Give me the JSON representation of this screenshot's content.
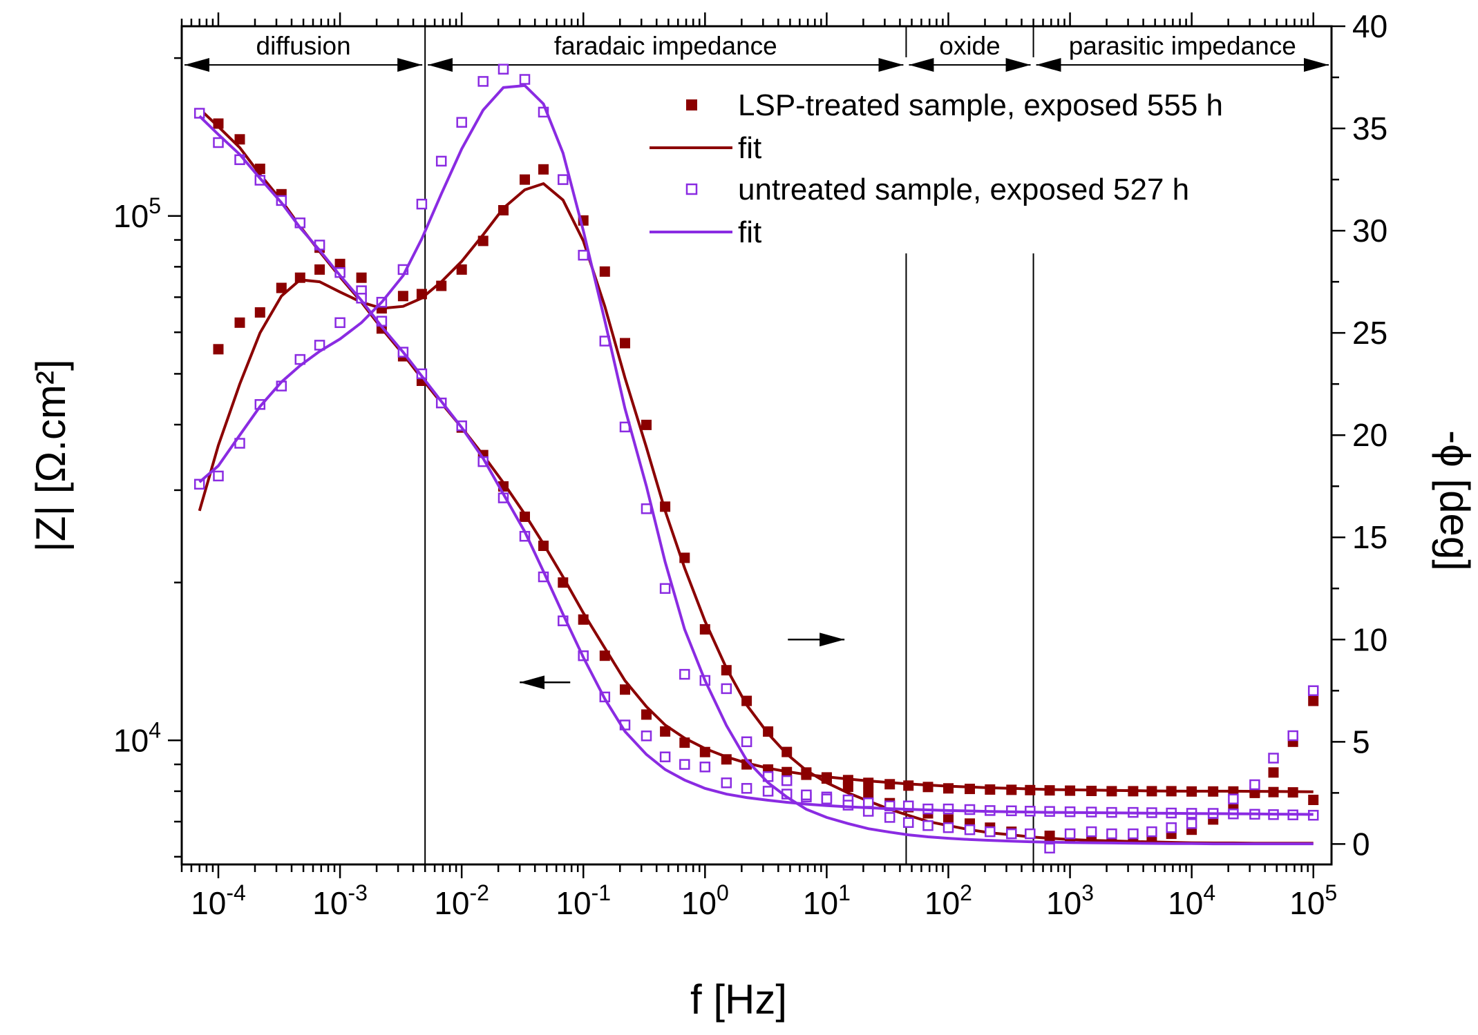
{
  "chart_data": {
    "type": "line",
    "title": "",
    "xlabel": "f [Hz]",
    "ylabel_left": "|Z| [Ω.cm²]",
    "ylabel_right": "-ϕ [deg]",
    "x_scale": "log",
    "xlim": [
      5e-05,
      141000
    ],
    "ylim_left": [
      5800,
      230000
    ],
    "y_scale_left": "log",
    "ylim_right": [
      -1,
      40
    ],
    "grid": false,
    "x_ticks": [
      {
        "value": 0.0001,
        "base": "10",
        "exp": "-4"
      },
      {
        "value": 0.001,
        "base": "10",
        "exp": "-3"
      },
      {
        "value": 0.01,
        "base": "10",
        "exp": "-2"
      },
      {
        "value": 0.1,
        "base": "10",
        "exp": "-1"
      },
      {
        "value": 1,
        "base": "10",
        "exp": "0"
      },
      {
        "value": 10,
        "base": "10",
        "exp": "1"
      },
      {
        "value": 100,
        "base": "10",
        "exp": "2"
      },
      {
        "value": 1000,
        "base": "10",
        "exp": "3"
      },
      {
        "value": 10000,
        "base": "10",
        "exp": "4"
      },
      {
        "value": 100000,
        "base": "10",
        "exp": "5"
      }
    ],
    "y_left_ticks": [
      {
        "value": 10000,
        "base": "10",
        "exp": "4"
      },
      {
        "value": 100000,
        "base": "10",
        "exp": "5"
      }
    ],
    "y_right_ticks": [
      0,
      5,
      10,
      15,
      20,
      25,
      30,
      35,
      40
    ],
    "regions": [
      {
        "label": "diffusion",
        "from": 5e-05,
        "to": 0.005
      },
      {
        "label": "faradaic impedance",
        "from": 0.005,
        "to": 45
      },
      {
        "label": "oxide",
        "from": 45,
        "to": 500
      },
      {
        "label": "parasitic impedance",
        "from": 500,
        "to": 141000
      }
    ],
    "region_boundaries": [
      0.005,
      45,
      500
    ],
    "arrows": [
      {
        "direction": "left",
        "x_from": 0.078,
        "x_to": 0.03,
        "y_left": 12900
      },
      {
        "direction": "right",
        "x_from": 4.8,
        "x_to": 14,
        "y_right": 10
      }
    ],
    "x": [
      7e-05,
      0.0001,
      0.00015,
      0.00022,
      0.00033,
      0.00047,
      0.00068,
      0.001,
      0.0015,
      0.0022,
      0.0033,
      0.0047,
      0.0068,
      0.01,
      0.015,
      0.022,
      0.033,
      0.047,
      0.068,
      0.1,
      0.15,
      0.22,
      0.33,
      0.47,
      0.68,
      1,
      1.5,
      2.2,
      3.3,
      4.7,
      6.8,
      10,
      15,
      22,
      33,
      47,
      68,
      100,
      150,
      220,
      330,
      470,
      680,
      1000,
      1500,
      2200,
      3300,
      4700,
      6800,
      10000,
      15000,
      22000,
      33000,
      47000,
      68000,
      100000
    ],
    "series": [
      {
        "name": "LSP-treated sample, exposed 555 h",
        "kind": "markers",
        "marker": "filled-square",
        "color": "#8b0000",
        "legend_label": "LSP-treated sample, exposed 555 h",
        "z_values": [
          null,
          150000,
          140000,
          123000,
          110000,
          97000,
          87000,
          81000,
          71000,
          61000,
          54000,
          48500,
          44000,
          39500,
          35000,
          30500,
          26700,
          23500,
          20000,
          17000,
          14500,
          12500,
          11200,
          10400,
          9900,
          9500,
          9200,
          9000,
          8800,
          8700,
          8600,
          8500,
          8400,
          8300,
          8250,
          8200,
          8150,
          8100,
          8080,
          8060,
          8050,
          8040,
          8030,
          8020,
          8010,
          8000,
          8000,
          8000,
          8000,
          7990,
          7990,
          7990,
          7980,
          7970,
          7960,
          7700
        ],
        "phase_values": [
          null,
          24.2,
          25.5,
          26,
          27.2,
          27.7,
          28.1,
          28,
          27.7,
          26.2,
          26.8,
          26.9,
          27.3,
          28.1,
          29.5,
          31,
          32.5,
          33,
          32.5,
          30.5,
          28,
          24.5,
          20.5,
          16.5,
          14,
          10.5,
          8.5,
          7,
          5.5,
          4.5,
          3.5,
          3.2,
          2.8,
          2.5,
          2,
          1.8,
          1.5,
          1.2,
          1,
          0.8,
          0.6,
          0.5,
          0.4,
          0.35,
          0.3,
          0.3,
          0.3,
          0.4,
          0.5,
          0.7,
          1.2,
          1.7,
          2.5,
          3.5,
          5,
          7
        ]
      },
      {
        "name": "fit (LSP-treated)",
        "kind": "line",
        "color": "#8b0000",
        "legend_label": "fit",
        "z_values": [
          160000,
          148000,
          135000,
          120000,
          107000,
          95500,
          85500,
          76500,
          68500,
          61000,
          54500,
          49000,
          44000,
          39500,
          35000,
          31000,
          27000,
          23700,
          20500,
          17500,
          15000,
          13000,
          11600,
          10700,
          10100,
          9650,
          9300,
          9050,
          8850,
          8720,
          8610,
          8520,
          8440,
          8370,
          8310,
          8260,
          8220,
          8180,
          8150,
          8120,
          8100,
          8080,
          8060,
          8050,
          8040,
          8030,
          8020,
          8010,
          8005,
          8000,
          8000,
          8000,
          7995,
          7990,
          7985,
          7980
        ],
        "phase_values": [
          16.3,
          19.5,
          22.5,
          25,
          26.8,
          27.6,
          27.5,
          27,
          26.5,
          26.2,
          26.3,
          26.7,
          27.5,
          28.5,
          29.8,
          31.1,
          32,
          32.3,
          31.5,
          29.5,
          26.3,
          22.8,
          19.4,
          16.3,
          13.5,
          10.9,
          8.6,
          6.8,
          5.4,
          4.4,
          3.6,
          3,
          2.5,
          2.1,
          1.7,
          1.4,
          1.1,
          0.9,
          0.7,
          0.55,
          0.45,
          0.35,
          0.28,
          0.22,
          0.18,
          0.15,
          0.12,
          0.1,
          0.08,
          0.06,
          0.05,
          0.05,
          0.04,
          0.04,
          0.04,
          0.04
        ]
      },
      {
        "name": "untreated sample, exposed 527 h",
        "kind": "markers",
        "marker": "open-square",
        "color": "#8a2be2",
        "legend_label": "untreated sample, exposed 527 h",
        "z_values": [
          157000,
          138000,
          128000,
          117000,
          107000,
          97000,
          88000,
          78000,
          72000,
          63000,
          55000,
          50000,
          44000,
          39800,
          34000,
          29000,
          24500,
          20500,
          16900,
          14500,
          12100,
          10700,
          10200,
          9300,
          9000,
          8900,
          8300,
          8100,
          8000,
          7900,
          7800,
          7800,
          7700,
          7600,
          7500,
          7500,
          7400,
          7400,
          7380,
          7350,
          7340,
          7330,
          7320,
          7310,
          7300,
          7290,
          7290,
          7280,
          7270,
          7260,
          7250,
          7240,
          7230,
          7220,
          7210,
          7200
        ],
        "phase_values": [
          17.6,
          18,
          19.6,
          21.5,
          22.4,
          23.7,
          24.4,
          25.5,
          26.7,
          26.5,
          28.1,
          31.3,
          33.4,
          35.3,
          37.3,
          37.9,
          37.4,
          35.8,
          32.5,
          28.8,
          24.6,
          20.4,
          16.4,
          12.5,
          8.3,
          8,
          7.6,
          5,
          3.3,
          3.1,
          2.4,
          2.2,
          1.9,
          1.6,
          1.3,
          1.05,
          0.9,
          0.8,
          0.7,
          0.6,
          0.5,
          0.5,
          -0.2,
          0.5,
          0.6,
          0.5,
          0.5,
          0.6,
          0.8,
          1,
          1.5,
          2.2,
          2.9,
          4.2,
          5.3,
          7.5
        ]
      },
      {
        "name": "fit (untreated)",
        "kind": "line",
        "color": "#8a2be2",
        "legend_label": "fit",
        "z_values": [
          155000,
          143000,
          131000,
          118000,
          106000,
          95000,
          86000,
          77000,
          69000,
          61500,
          55000,
          49500,
          44300,
          39500,
          34500,
          29500,
          25000,
          21000,
          17400,
          14400,
          12000,
          10400,
          9400,
          8800,
          8400,
          8100,
          7900,
          7780,
          7690,
          7620,
          7560,
          7510,
          7470,
          7440,
          7410,
          7390,
          7370,
          7350,
          7335,
          7320,
          7310,
          7300,
          7290,
          7285,
          7280,
          7275,
          7270,
          7265,
          7260,
          7255,
          7250,
          7245,
          7240,
          7235,
          7230,
          7225
        ],
        "phase_values": [
          17.7,
          18.5,
          20,
          21.4,
          22.6,
          23.4,
          24.1,
          24.7,
          25.5,
          26.5,
          27.8,
          29.6,
          31.8,
          34,
          35.9,
          37,
          37.1,
          36.2,
          33.8,
          30,
          25.6,
          21.3,
          17.5,
          13.8,
          10.5,
          8,
          5.8,
          4.1,
          3,
          2.3,
          1.7,
          1.3,
          1,
          0.75,
          0.58,
          0.45,
          0.35,
          0.28,
          0.22,
          0.18,
          0.14,
          0.11,
          0.09,
          0.07,
          0.06,
          0.05,
          0.04,
          0.03,
          0.02,
          0.02,
          0.01,
          0.01,
          0.01,
          0.01,
          0.01,
          0.01
        ]
      }
    ]
  }
}
